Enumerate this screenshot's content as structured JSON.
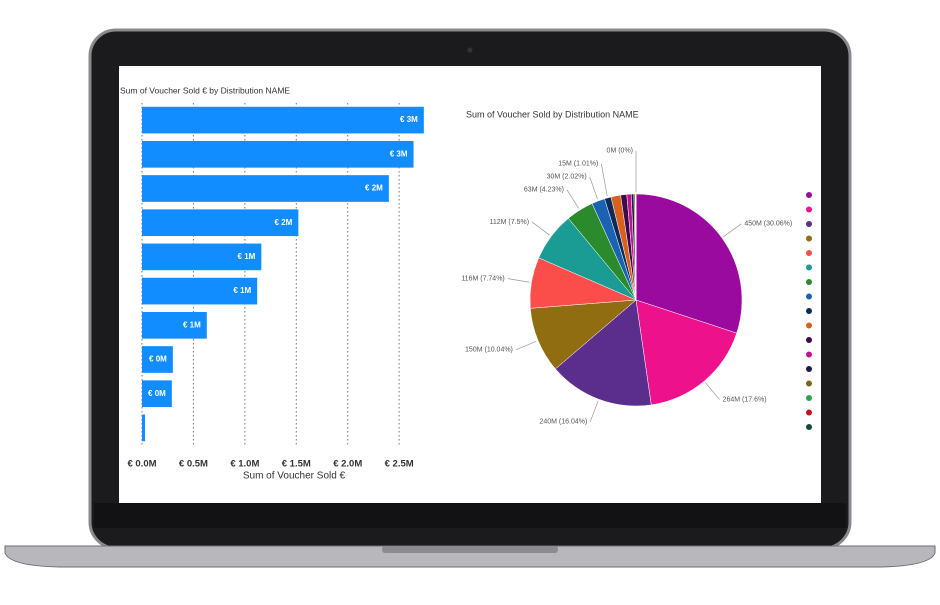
{
  "chart_data": [
    {
      "type": "bar",
      "orientation": "horizontal",
      "title": "Sum of Voucher Sold € by Distribution NAME",
      "x_label": "Sum of Voucher Sold €",
      "categories": [
        null,
        null,
        null,
        null,
        null,
        null,
        null,
        null,
        null,
        null
      ],
      "values": [
        2.74,
        2.64,
        2.4,
        1.52,
        1.16,
        1.12,
        0.63,
        0.3,
        0.29,
        0.03
      ],
      "value_labels": [
        "€ 3M",
        "€ 3M",
        "€ 2M",
        "€ 2M",
        "€ 1M",
        "€ 1M",
        "€ 1M",
        "€ 0M",
        "€ 0M",
        null
      ],
      "color": "#118dff",
      "xlim": [
        0,
        2.8
      ],
      "xticks": [
        {
          "value": 0,
          "label": "€ 0.0M"
        },
        {
          "value": 0.5,
          "label": "€ 0.5M"
        },
        {
          "value": 1,
          "label": "€ 1.0M"
        },
        {
          "value": 1.5,
          "label": "€ 1.5M"
        },
        {
          "value": 2,
          "label": "€ 2.0M"
        },
        {
          "value": 2.5,
          "label": "€ 2.5M"
        }
      ],
      "grid": true
    },
    {
      "type": "pie",
      "title": "Sum of Voucher Sold by Distribution NAME",
      "categories": [
        null,
        null,
        null,
        null,
        null,
        null,
        null,
        null,
        null,
        null,
        null,
        null,
        null,
        null,
        null,
        null,
        null
      ],
      "values": [
        450,
        264,
        240,
        150,
        116,
        112,
        63,
        30,
        15,
        22,
        14,
        10,
        6,
        3,
        1.5,
        0.3,
        0
      ],
      "value_labels": [
        "450M (30.06%)",
        "264M (17.6%)",
        "240M (16.04%)",
        "150M (10.04%)",
        "116M (7.74%)",
        "112M (7.5%)",
        "63M (4.23%)",
        "30M (2.02%)",
        "15M (1.01%)",
        null,
        null,
        null,
        null,
        null,
        null,
        null,
        "0M (0%)"
      ],
      "colors": [
        "#9a0a9e",
        "#ee118c",
        "#5b2d8c",
        "#8f6d10",
        "#fb4d4a",
        "#1a9c94",
        "#2a8a2c",
        "#1c62b2",
        "#0e2a5c",
        "#d8621c",
        "#3b0b4c",
        "#c2138e",
        "#1a1a4c",
        "#7a6a18",
        "#2aa34c",
        "#c2141e",
        "#1a4a3a"
      ],
      "legend": "right"
    }
  ]
}
